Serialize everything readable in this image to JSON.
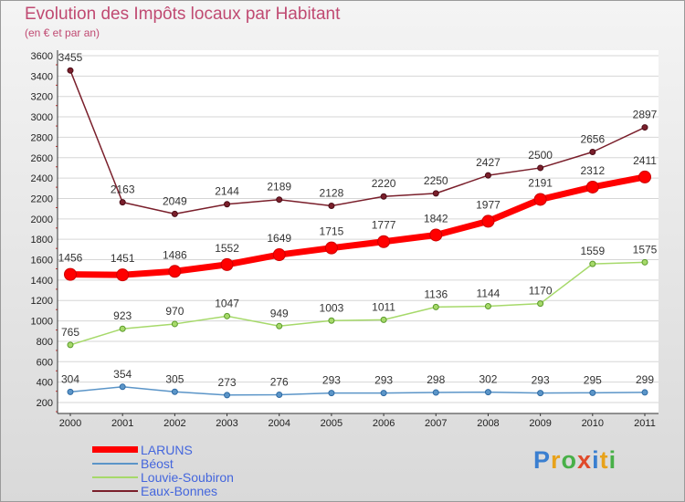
{
  "title": "Evolution des Impôts locaux par Habitant",
  "subtitle": "(en € et par an)",
  "logo": "Proxiti",
  "colors": {
    "title": "#c04a72",
    "laruns": "#ff0000",
    "beost": "#5b95c8",
    "louvie": "#a6d96a",
    "eaux": "#7a1f2b"
  },
  "chart_data": {
    "type": "line",
    "title": "Evolution des Impôts locaux par Habitant",
    "subtitle": "(en € et par an)",
    "xlabel": "",
    "ylabel": "",
    "ylim": [
      200,
      3600
    ],
    "y_ticks": [
      200,
      400,
      600,
      800,
      1000,
      1200,
      1400,
      1600,
      1800,
      2000,
      2200,
      2400,
      2600,
      2800,
      3000,
      3200,
      3400,
      3600
    ],
    "x": [
      "2000",
      "2001",
      "2002",
      "2003",
      "2004",
      "2005",
      "2006",
      "2007",
      "2008",
      "2009",
      "2010",
      "2011"
    ],
    "legend_position": "bottom-left",
    "series": [
      {
        "name": "LARUNS",
        "color": "#ff0000",
        "values": [
          1456,
          1451,
          1486,
          1552,
          1649,
          1715,
          1777,
          1842,
          1977,
          2191,
          2312,
          2411
        ]
      },
      {
        "name": "Béost",
        "color": "#5b95c8",
        "values": [
          304,
          354,
          305,
          273,
          276,
          293,
          293,
          298,
          302,
          293,
          295,
          299
        ]
      },
      {
        "name": "Louvie-Soubiron",
        "color": "#a6d96a",
        "values": [
          765,
          923,
          970,
          1047,
          949,
          1003,
          1011,
          1136,
          1144,
          1170,
          1559,
          1575
        ]
      },
      {
        "name": "Eaux-Bonnes",
        "color": "#7a1f2b",
        "values": [
          3455,
          2163,
          2049,
          2144,
          2189,
          2128,
          2220,
          2250,
          2427,
          2500,
          2656,
          2897
        ]
      }
    ]
  }
}
